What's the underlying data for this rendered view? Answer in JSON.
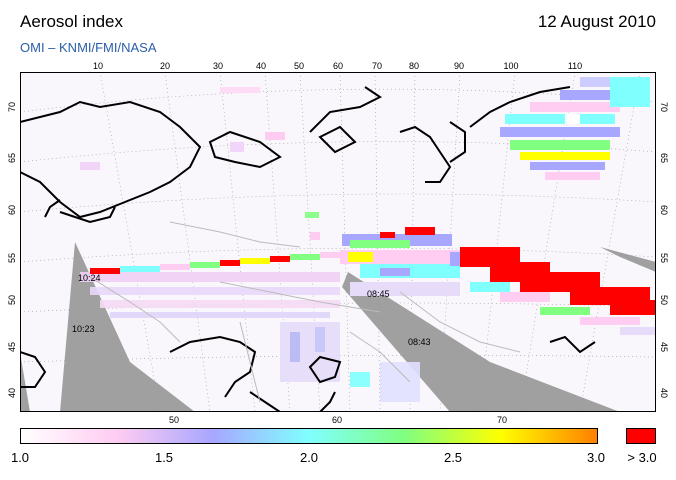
{
  "header": {
    "title": "Aerosol index",
    "date": "12 August 2010",
    "source": "OMI  –  KNMI/FMI/NASA"
  },
  "map": {
    "lon_top": [
      "10",
      "20",
      "30",
      "40",
      "50",
      "60",
      "70",
      "80",
      "90",
      "100",
      "110"
    ],
    "lon_bottom": [
      "50",
      "60",
      "70"
    ],
    "lat_left": [
      "70",
      "65",
      "60",
      "55",
      "50",
      "45",
      "40"
    ],
    "lat_right": [
      "70",
      "65",
      "60",
      "55",
      "50",
      "45",
      "40"
    ],
    "orbit_times": [
      "10:24",
      "10:23",
      "08:45",
      "08:43"
    ],
    "no_data_color": "#a0a0a0",
    "coastline_color": "#000000",
    "border_color": "#bbbbbb"
  },
  "legend": {
    "ticks": [
      "1.0",
      "1.5",
      "2.0",
      "2.5",
      "3.0"
    ],
    "overflow_label": "> 3.0",
    "overflow_color": "#ff0000",
    "gradient_colors": [
      "#ffffff",
      "#ffccf2",
      "#a7a7ff",
      "#80ffff",
      "#80ff80",
      "#ffff00",
      "#ff8000"
    ]
  }
}
